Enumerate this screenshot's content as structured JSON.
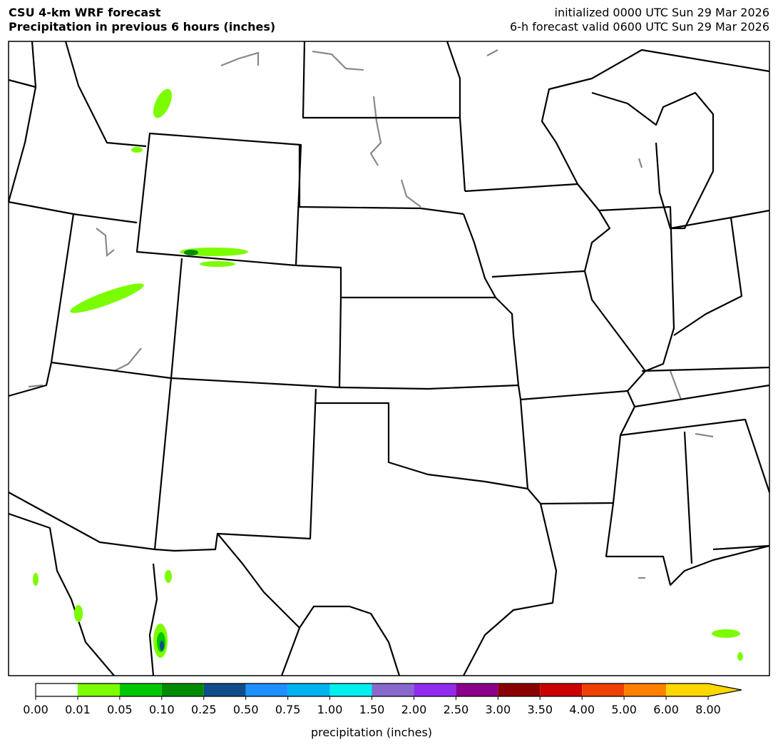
{
  "header": {
    "title": "CSU 4-km WRF forecast",
    "subtitle": "Precipitation in previous 6 hours (inches)",
    "initialized": "initialized 0000 UTC Sun 29 Mar 2026",
    "valid": "6-h forecast valid 0600 UTC Sun 29 Mar 2026"
  },
  "colorbar": {
    "label": "precipitation (inches)",
    "ticks": [
      {
        "value": 0,
        "label": "0.00"
      },
      {
        "value": 0.01,
        "label": "0.01"
      },
      {
        "value": 0.05,
        "label": "0.05"
      },
      {
        "value": 0.1,
        "label": "0.10"
      },
      {
        "value": 0.25,
        "label": "0.25"
      },
      {
        "value": 0.5,
        "label": "0.50"
      },
      {
        "value": 0.75,
        "label": "0.75"
      },
      {
        "value": 1,
        "label": "1.00"
      },
      {
        "value": 1.5,
        "label": "1.50"
      },
      {
        "value": 2,
        "label": "2.00"
      },
      {
        "value": 2.5,
        "label": "2.50"
      },
      {
        "value": 3,
        "label": "3.00"
      },
      {
        "value": 3.5,
        "label": "3.50"
      },
      {
        "value": 4,
        "label": "4.00"
      },
      {
        "value": 5,
        "label": "5.00"
      },
      {
        "value": 6,
        "label": "6.00"
      },
      {
        "value": 8,
        "label": "8.00"
      }
    ],
    "colors": [
      "#ffffff",
      "#7cfc00",
      "#00c800",
      "#008b00",
      "#104e8b",
      "#1e90ff",
      "#00b2ee",
      "#00eeee",
      "#8968cd",
      "#912cee",
      "#8b008b",
      "#8b0000",
      "#cd0000",
      "#ee4000",
      "#ff7f00",
      "#ffd700"
    ],
    "extend_color": "#ffd700"
  }
}
